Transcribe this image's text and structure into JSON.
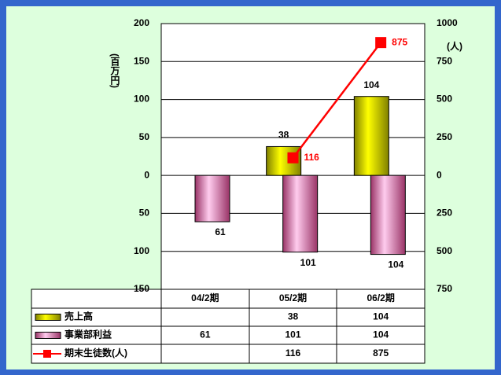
{
  "chart_data": {
    "type": "bar",
    "categories": [
      "04/2期",
      "05/2期",
      "06/2期"
    ],
    "y_label": "(百万円)",
    "y2_label": "(人)",
    "ylim": [
      -150,
      200
    ],
    "yticks": [
      200,
      150,
      100,
      50,
      0,
      {
        "value": -50,
        "label": "50"
      },
      {
        "value": -100,
        "label": "100"
      },
      {
        "value": -150,
        "label": "150"
      }
    ],
    "y2lim": [
      -750,
      1000
    ],
    "y2ticks": [
      1000,
      750,
      500,
      250,
      0,
      {
        "value": -250,
        "label": "250"
      },
      {
        "value": -500,
        "label": "500"
      },
      {
        "value": -750,
        "label": "750"
      }
    ],
    "grid": true,
    "series": [
      {
        "name": "売上高",
        "type": "bar",
        "color": "#ffff00",
        "values": [
          null,
          38,
          104
        ]
      },
      {
        "name": "事業部利益",
        "type": "bar",
        "color": "#ff99cc",
        "values": [
          -61,
          -101,
          -104
        ],
        "value_labels": [
          "61",
          "101",
          "104"
        ]
      },
      {
        "name": "期末生徒数(人)",
        "type": "line",
        "axis": "y2",
        "color": "#ff0000",
        "values": [
          null,
          116,
          875
        ]
      }
    ]
  }
}
